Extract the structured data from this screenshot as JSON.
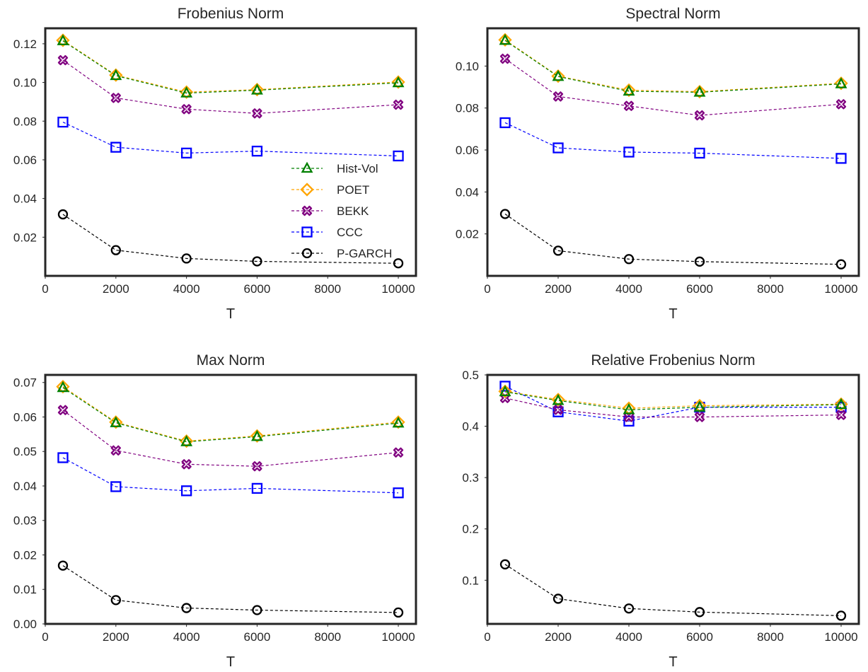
{
  "chart_data": [
    {
      "type": "line",
      "title": "Frobenius Norm",
      "xlabel": "T",
      "ylabel": "",
      "x": [
        500,
        2000,
        4000,
        6000,
        10000
      ],
      "xlim": [
        0,
        10500
      ],
      "ylim": [
        0.0,
        0.128
      ],
      "xticks": [
        "0",
        "2000",
        "4000",
        "6000",
        "8000",
        "10000"
      ],
      "yticks": [
        "0.02",
        "0.04",
        "0.06",
        "0.08",
        "0.10",
        "0.12"
      ],
      "grid": false,
      "legend": "center-right",
      "series": [
        {
          "name": "Hist-Vol",
          "color": "#008000",
          "marker": "triangle",
          "values": [
            0.1215,
            0.1035,
            0.0945,
            0.096,
            0.0998
          ]
        },
        {
          "name": "POET",
          "color": "#FFA500",
          "marker": "diamond",
          "values": [
            0.1218,
            0.1038,
            0.095,
            0.0963,
            0.1002
          ]
        },
        {
          "name": "BEKK",
          "color": "#800080",
          "marker": "x-circle",
          "values": [
            0.1115,
            0.092,
            0.0862,
            0.084,
            0.0885
          ]
        },
        {
          "name": "CCC",
          "color": "#0000FF",
          "marker": "square",
          "values": [
            0.0795,
            0.0665,
            0.0635,
            0.0645,
            0.062
          ]
        },
        {
          "name": "P-GARCH",
          "color": "#000000",
          "marker": "circle",
          "values": [
            0.0318,
            0.0133,
            0.009,
            0.0075,
            0.0065
          ]
        }
      ]
    },
    {
      "type": "line",
      "title": "Spectral Norm",
      "xlabel": "T",
      "ylabel": "",
      "x": [
        500,
        2000,
        4000,
        6000,
        10000
      ],
      "xlim": [
        0,
        10500
      ],
      "ylim": [
        0.0,
        0.118
      ],
      "xticks": [
        "0",
        "2000",
        "4000",
        "6000",
        "8000",
        "10000"
      ],
      "yticks": [
        "0.02",
        "0.04",
        "0.06",
        "0.08",
        "0.10"
      ],
      "grid": false,
      "legend": "",
      "series": [
        {
          "name": "Hist-Vol",
          "color": "#008000",
          "marker": "triangle",
          "values": [
            0.1122,
            0.095,
            0.088,
            0.0875,
            0.0915
          ]
        },
        {
          "name": "POET",
          "color": "#FFA500",
          "marker": "diamond",
          "values": [
            0.1125,
            0.0952,
            0.0885,
            0.0878,
            0.0918
          ]
        },
        {
          "name": "BEKK",
          "color": "#800080",
          "marker": "x-circle",
          "values": [
            0.1035,
            0.0855,
            0.081,
            0.0765,
            0.0818
          ]
        },
        {
          "name": "CCC",
          "color": "#0000FF",
          "marker": "square",
          "values": [
            0.073,
            0.061,
            0.059,
            0.0585,
            0.056
          ]
        },
        {
          "name": "P-GARCH",
          "color": "#000000",
          "marker": "circle",
          "values": [
            0.0295,
            0.012,
            0.008,
            0.0068,
            0.0055
          ]
        }
      ]
    },
    {
      "type": "line",
      "title": "Max Norm",
      "xlabel": "T",
      "ylabel": "",
      "x": [
        500,
        2000,
        4000,
        6000,
        10000
      ],
      "xlim": [
        0,
        10500
      ],
      "ylim": [
        0.0,
        0.0722
      ],
      "xticks": [
        "0",
        "2000",
        "4000",
        "6000",
        "8000",
        "10000"
      ],
      "yticks": [
        "0.00",
        "0.01",
        "0.02",
        "0.03",
        "0.04",
        "0.05",
        "0.06",
        "0.07"
      ],
      "grid": false,
      "legend": "",
      "series": [
        {
          "name": "Hist-Vol",
          "color": "#008000",
          "marker": "triangle",
          "values": [
            0.0685,
            0.0583,
            0.0528,
            0.0543,
            0.0582
          ]
        },
        {
          "name": "POET",
          "color": "#FFA500",
          "marker": "diamond",
          "values": [
            0.0688,
            0.0585,
            0.053,
            0.0545,
            0.0585
          ]
        },
        {
          "name": "BEKK",
          "color": "#800080",
          "marker": "x-circle",
          "values": [
            0.062,
            0.0503,
            0.0463,
            0.0457,
            0.0497
          ]
        },
        {
          "name": "CCC",
          "color": "#0000FF",
          "marker": "square",
          "values": [
            0.0482,
            0.0398,
            0.0386,
            0.0393,
            0.038
          ]
        },
        {
          "name": "P-GARCH",
          "color": "#000000",
          "marker": "circle",
          "values": [
            0.0169,
            0.0069,
            0.0046,
            0.004,
            0.0033
          ]
        }
      ]
    },
    {
      "type": "line",
      "title": "Relative Frobenius Norm",
      "xlabel": "T",
      "ylabel": "",
      "x": [
        500,
        2000,
        4000,
        6000,
        10000
      ],
      "xlim": [
        0,
        10500
      ],
      "ylim": [
        0.015,
        0.5
      ],
      "xticks": [
        "0",
        "2000",
        "4000",
        "6000",
        "8000",
        "10000"
      ],
      "yticks": [
        "0.1",
        "0.2",
        "0.3",
        "0.4",
        "0.5"
      ],
      "grid": false,
      "legend": "",
      "series": [
        {
          "name": "Hist-Vol",
          "color": "#008000",
          "marker": "triangle",
          "values": [
            0.467,
            0.45,
            0.432,
            0.437,
            0.442
          ]
        },
        {
          "name": "POET",
          "color": "#FFA500",
          "marker": "diamond",
          "values": [
            0.468,
            0.452,
            0.435,
            0.44,
            0.443
          ]
        },
        {
          "name": "BEKK",
          "color": "#800080",
          "marker": "x-circle",
          "values": [
            0.455,
            0.432,
            0.418,
            0.418,
            0.422
          ]
        },
        {
          "name": "CCC",
          "color": "#0000FF",
          "marker": "square",
          "values": [
            0.478,
            0.428,
            0.41,
            0.437,
            0.437
          ]
        },
        {
          "name": "P-GARCH",
          "color": "#000000",
          "marker": "circle",
          "values": [
            0.131,
            0.064,
            0.045,
            0.038,
            0.031
          ]
        }
      ]
    }
  ]
}
